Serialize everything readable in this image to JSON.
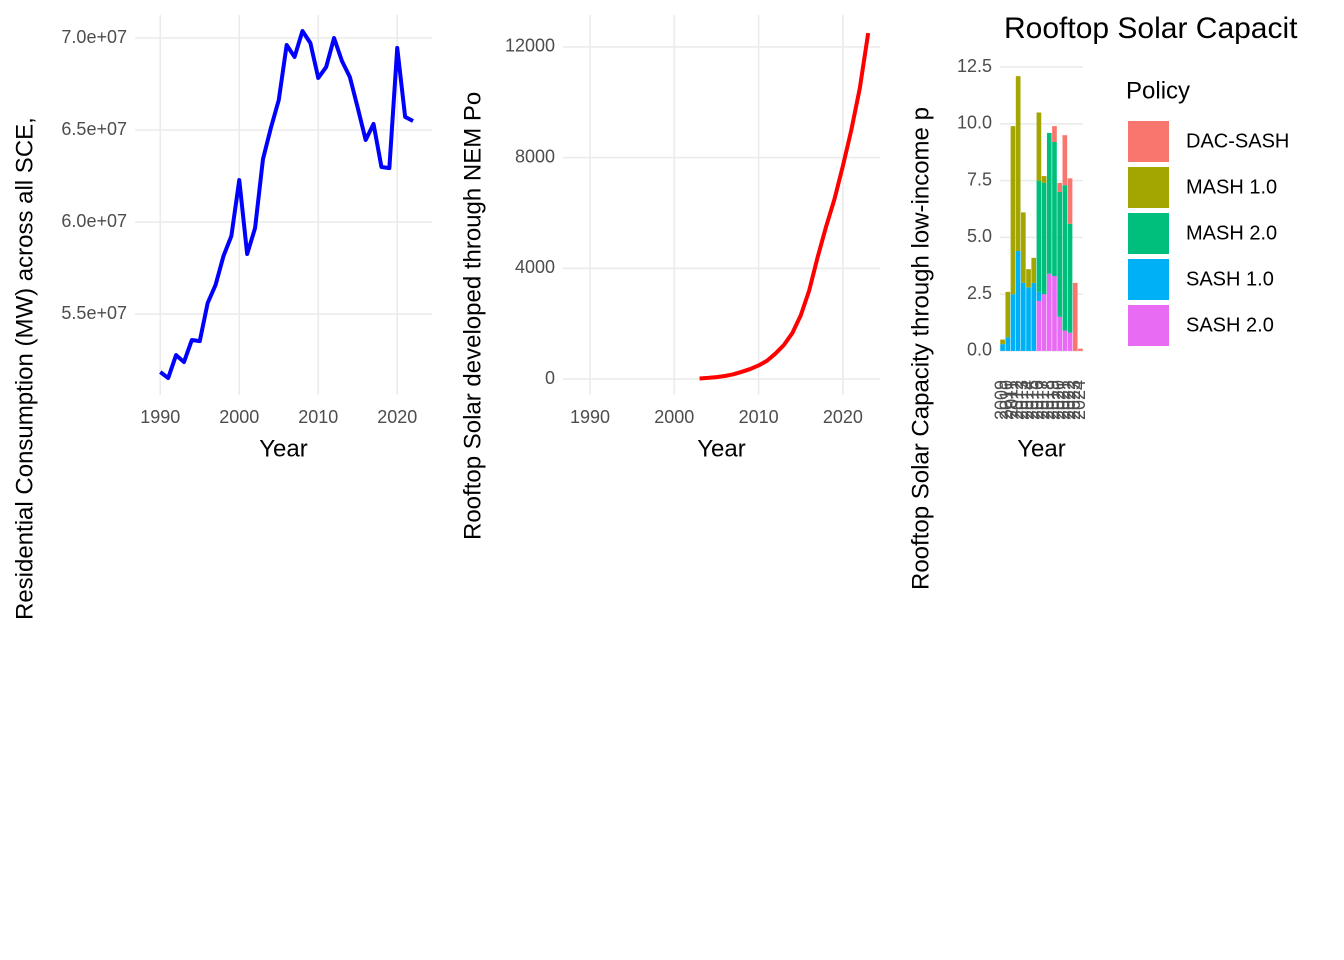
{
  "chart_data": [
    {
      "type": "line",
      "ylabel": "Residential Consumption (MW) across all SCE,",
      "xlabel": "Year",
      "x": [
        1990,
        1991,
        1992,
        1993,
        1994,
        1995,
        1996,
        1997,
        1998,
        1999,
        2000,
        2001,
        2002,
        2003,
        2004,
        2005,
        2006,
        2007,
        2008,
        2009,
        2010,
        2011,
        2012,
        2013,
        2014,
        2015,
        2016,
        2017,
        2018,
        2019,
        2020,
        2021,
        2022
      ],
      "values": [
        51850000,
        51520000,
        52770000,
        52390000,
        53590000,
        53530000,
        55600000,
        56580000,
        58150000,
        59240000,
        62280000,
        58260000,
        59670000,
        63420000,
        65110000,
        66630000,
        69620000,
        68970000,
        70380000,
        69730000,
        67830000,
        68420000,
        70000000,
        68750000,
        67880000,
        66200000,
        64460000,
        65330000,
        62990000,
        62930000,
        69460000,
        65710000,
        65490000
      ],
      "color": "#0000ff",
      "xlim": [
        1986.8,
        2024.4
      ],
      "xticks": [
        1990,
        2000,
        2010,
        2020
      ],
      "ylim": [
        50600000,
        71250000
      ],
      "yticks": [
        {
          "value": 55000000,
          "label": "5.5e+07"
        },
        {
          "value": 60000000,
          "label": "6.0e+07"
        },
        {
          "value": 65000000,
          "label": "6.5e+07"
        },
        {
          "value": 70000000,
          "label": "7.0e+07"
        }
      ],
      "grid": true
    },
    {
      "type": "line",
      "ylabel": "Rooftop Solar developed through NEM Po",
      "xlabel": "Year",
      "x": [
        2003,
        2004,
        2005,
        2006,
        2007,
        2008,
        2009,
        2010,
        2011,
        2012,
        2013,
        2014,
        2015,
        2016,
        2017,
        2018,
        2019,
        2020,
        2021,
        2022,
        2023
      ],
      "values": [
        20,
        40,
        70,
        110,
        170,
        260,
        360,
        490,
        660,
        920,
        1230,
        1660,
        2300,
        3200,
        4400,
        5500,
        6500,
        7700,
        9000,
        10500,
        12500
      ],
      "color": "#ff0000",
      "xlim": [
        1986.8,
        2024.4
      ],
      "xticks": [
        1990,
        2000,
        2010,
        2020
      ],
      "ylim": [
        -577,
        13153
      ],
      "yticks": [
        0,
        4000,
        8000,
        12000
      ],
      "grid": true
    },
    {
      "type": "bar",
      "title": "Rooftop Solar Capacit",
      "ylabel": "Rooftop Solar Capacity through low-income p",
      "xlabel": "Year",
      "categories": [
        "2009",
        "2010",
        "2011",
        "2012",
        "2013",
        "2014",
        "2015",
        "2016",
        "2017",
        "2018",
        "2019",
        "2020",
        "2021",
        "2022",
        "2023",
        "2024"
      ],
      "series": [
        {
          "name": "DAC-SASH",
          "color": "#F8766D",
          "values": [
            0,
            0,
            0,
            0,
            0,
            0,
            0,
            0,
            0,
            0,
            0.7,
            0.4,
            2.2,
            2.0,
            3.0,
            0.1
          ]
        },
        {
          "name": "MASH 1.0",
          "color": "#A3A500",
          "values": [
            0.2,
            2.0,
            7.4,
            7.7,
            3.1,
            0.8,
            1.1,
            3.0,
            0.3,
            0,
            0,
            0,
            0,
            0,
            0,
            0
          ]
        },
        {
          "name": "MASH 2.0",
          "color": "#00BF7D",
          "values": [
            0,
            0,
            0,
            0,
            0,
            0,
            0,
            4.9,
            4.9,
            6.2,
            5.9,
            5.5,
            6.4,
            4.8,
            0,
            0
          ]
        },
        {
          "name": "SASH 1.0",
          "color": "#00B0F6",
          "values": [
            0.3,
            0.6,
            2.5,
            4.4,
            3.0,
            2.8,
            3.0,
            0.4,
            0,
            0,
            0,
            0,
            0,
            0,
            0,
            0
          ]
        },
        {
          "name": "SASH 2.0",
          "color": "#E76BF3",
          "values": [
            0,
            0,
            0,
            0,
            0,
            0,
            0,
            2.2,
            2.5,
            3.4,
            3.3,
            1.5,
            0.9,
            0.8,
            0,
            0
          ]
        }
      ],
      "ylim": [
        -0.62,
        12.9
      ],
      "yticks": [
        {
          "value": 0,
          "label": "0.0"
        },
        2.5,
        {
          "value": 5,
          "label": "5.0"
        },
        7.5,
        {
          "value": 10,
          "label": "10.0"
        },
        12.5
      ],
      "grid": true,
      "legend_title": "Policy",
      "legend": "right"
    }
  ]
}
